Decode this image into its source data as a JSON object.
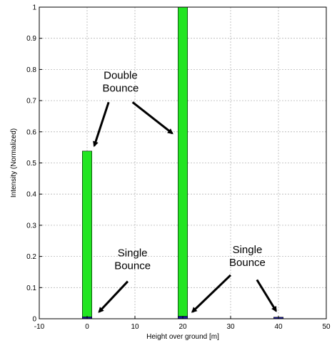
{
  "chart_data": {
    "type": "bar",
    "xlabel": "Height over ground [m]",
    "ylabel": "Intensity (Normalized)",
    "xlim": [
      -10,
      50
    ],
    "ylim": [
      0,
      1
    ],
    "xticks": [
      -10,
      0,
      10,
      20,
      30,
      40,
      50
    ],
    "yticks": [
      0,
      0.1,
      0.2,
      0.3,
      0.4,
      0.5,
      0.6,
      0.7,
      0.8,
      0.9,
      1
    ],
    "xtick_labels": [
      "-10",
      "0",
      "10",
      "20",
      "30",
      "40",
      "50"
    ],
    "ytick_labels": [
      "0",
      "0.1",
      "0.2",
      "0.3",
      "0.4",
      "0.5",
      "0.6",
      "0.7",
      "0.8",
      "0.9",
      "1"
    ],
    "grid": true,
    "bar_width": 2,
    "series": [
      {
        "color": "#22e522",
        "points": [
          {
            "x": 0,
            "y": 0.538
          },
          {
            "x": 20,
            "y": 1.0
          }
        ]
      },
      {
        "color": "#1a1a9e",
        "points": [
          {
            "x": 0,
            "y": 0.006
          },
          {
            "x": 20,
            "y": 0.008
          },
          {
            "x": 40,
            "y": 0.005
          }
        ]
      }
    ],
    "annotations": [
      {
        "lines": [
          "Double",
          "Bounce"
        ],
        "text_at": [
          7,
          0.77
        ],
        "arrows": [
          [
            1.5,
            0.555
          ],
          [
            17.8,
            0.595
          ]
        ],
        "arrow_from": [
          [
            4.5,
            0.695
          ],
          [
            9.5,
            0.695
          ]
        ]
      },
      {
        "lines": [
          "Single",
          "Bounce"
        ],
        "text_at": [
          9.5,
          0.2
        ],
        "arrows": [
          [
            2.5,
            0.022
          ]
        ],
        "arrow_from": [
          [
            8.5,
            0.12
          ]
        ]
      },
      {
        "lines": [
          "Single",
          "Bounce"
        ],
        "text_at": [
          33.5,
          0.21
        ],
        "arrows": [
          [
            22,
            0.022
          ],
          [
            39.5,
            0.025
          ]
        ],
        "arrow_from": [
          [
            30,
            0.14
          ],
          [
            35.5,
            0.125
          ]
        ]
      }
    ]
  }
}
